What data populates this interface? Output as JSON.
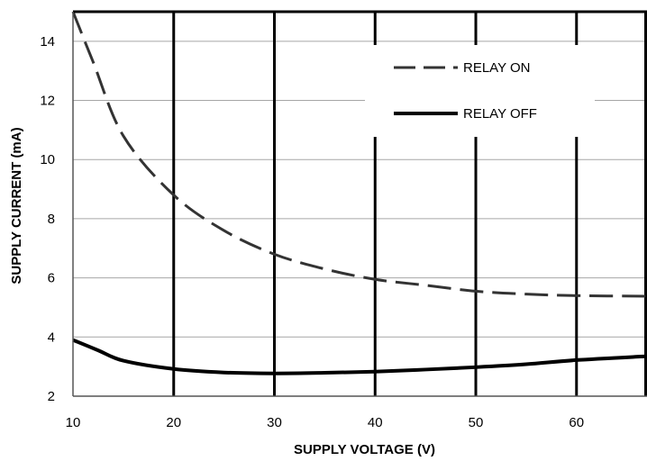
{
  "chart_data": {
    "type": "line",
    "xlabel": "SUPPLY VOLTAGE (V)",
    "ylabel": "SUPPLY CURRENT (mA)",
    "xlim": [
      10,
      67
    ],
    "ylim": [
      2,
      15
    ],
    "x_ticks": [
      10,
      20,
      30,
      40,
      50,
      60
    ],
    "y_ticks": [
      2,
      4,
      6,
      8,
      10,
      12,
      14
    ],
    "grid": "major gridlines on; vertical lines heavy",
    "legend_position": "top-right",
    "series": [
      {
        "name": "RELAY ON",
        "style": "dashed",
        "color": "#333333",
        "x": [
          10,
          12,
          15,
          20,
          25,
          30,
          35,
          40,
          45,
          50,
          55,
          60,
          67
        ],
        "y": [
          15.0,
          13.3,
          10.8,
          8.8,
          7.6,
          6.8,
          6.3,
          5.95,
          5.75,
          5.55,
          5.45,
          5.4,
          5.38
        ]
      },
      {
        "name": "RELAY OFF",
        "style": "solid",
        "color": "#000000",
        "x": [
          10,
          12.5,
          15,
          20,
          25,
          30,
          35,
          40,
          45,
          50,
          55,
          60,
          67
        ],
        "y": [
          3.9,
          3.55,
          3.2,
          2.92,
          2.8,
          2.77,
          2.79,
          2.83,
          2.9,
          2.98,
          3.08,
          3.22,
          3.35
        ]
      }
    ]
  }
}
